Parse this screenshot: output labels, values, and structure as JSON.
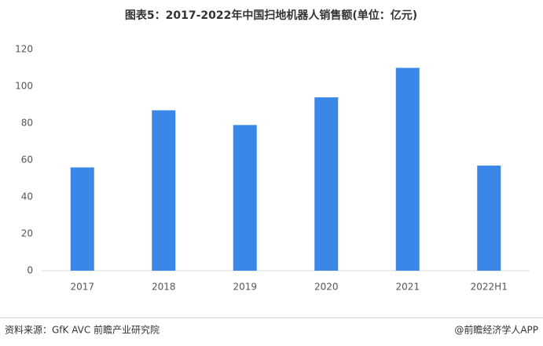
{
  "chart_data": {
    "type": "bar",
    "title": "图表5：2017-2022年中国扫地机器人销售额(单位：亿元)",
    "categories": [
      "2017",
      "2018",
      "2019",
      "2020",
      "2021",
      "2022H1"
    ],
    "values": [
      56,
      87,
      79,
      94,
      110,
      57
    ],
    "color": "#3a87e8",
    "ylim": [
      0,
      120
    ],
    "yticks": [
      0,
      20,
      40,
      60,
      80,
      100,
      120
    ],
    "grid": false,
    "source": "资料来源：GfK AVC 前瞻产业研究院",
    "credit": "@前瞻经济学人APP"
  }
}
